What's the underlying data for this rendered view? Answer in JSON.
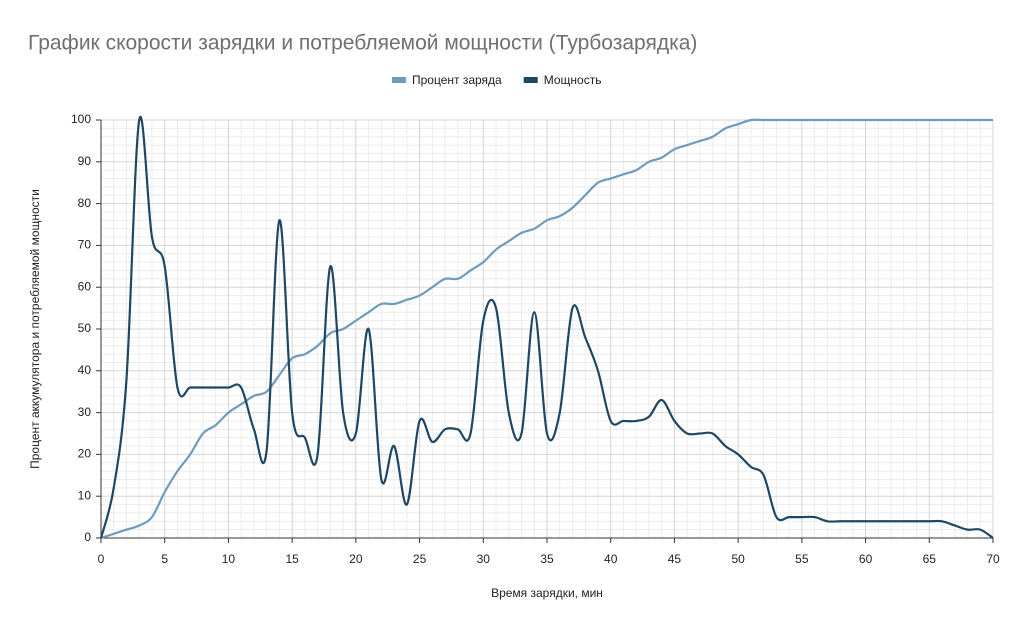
{
  "chart_data": {
    "type": "line",
    "title": "График скорости зарядки и потребляемой мощности (Турбозарядка)",
    "x_label": "Время зарядки, мин",
    "y_label": "Процент аккумулятора и потребляемой мощности",
    "x": [
      0,
      1,
      2,
      3,
      4,
      5,
      6,
      7,
      8,
      9,
      10,
      11,
      12,
      13,
      14,
      15,
      16,
      17,
      18,
      19,
      20,
      21,
      22,
      23,
      24,
      25,
      26,
      27,
      28,
      29,
      30,
      31,
      32,
      33,
      34,
      35,
      36,
      37,
      38,
      39,
      40,
      41,
      42,
      43,
      44,
      45,
      46,
      47,
      48,
      49,
      50,
      51,
      52,
      53,
      54,
      55,
      56,
      57,
      58,
      59,
      60,
      61,
      62,
      63,
      64,
      65,
      66,
      67,
      68,
      69,
      70
    ],
    "series": [
      {
        "name": "Процент заряда",
        "color": "#6f9bbd",
        "values": [
          0,
          1,
          2,
          3,
          5,
          11,
          16,
          20,
          25,
          27,
          30,
          32,
          34,
          35,
          39,
          43,
          44,
          46,
          49,
          50,
          52,
          54,
          56,
          56,
          57,
          58,
          60,
          62,
          62,
          64,
          66,
          69,
          71,
          73,
          74,
          76,
          77,
          79,
          82,
          85,
          86,
          87,
          88,
          90,
          91,
          93,
          94,
          95,
          96,
          98,
          99,
          100,
          100,
          100,
          100,
          100,
          100,
          100,
          100,
          100,
          100,
          100,
          100,
          100,
          100,
          100,
          100,
          100,
          100,
          100,
          100
        ]
      },
      {
        "name": "Мощность",
        "color": "#1f4763",
        "values": [
          0,
          12,
          38,
          100,
          72,
          65,
          36,
          36,
          36,
          36,
          36,
          36,
          26,
          21,
          76,
          30,
          24,
          20,
          65,
          30,
          25,
          50,
          14,
          22,
          8,
          28,
          23,
          26,
          26,
          25,
          52,
          55,
          30,
          25,
          54,
          25,
          30,
          55,
          48,
          40,
          28,
          28,
          28,
          29,
          33,
          28,
          25,
          25,
          25,
          22,
          20,
          17,
          15,
          5,
          5,
          5,
          5,
          4,
          4,
          4,
          4,
          4,
          4,
          4,
          4,
          4,
          4,
          3,
          2,
          2,
          0
        ]
      }
    ],
    "xlim": [
      0,
      70
    ],
    "xticks": [
      0,
      5,
      10,
      15,
      20,
      25,
      30,
      35,
      40,
      45,
      50,
      55,
      60,
      65,
      70
    ],
    "ylim": [
      0,
      100
    ],
    "yticks": [
      0,
      10,
      20,
      30,
      40,
      50,
      60,
      70,
      80,
      90,
      100
    ],
    "grid": true,
    "legend": "top"
  }
}
